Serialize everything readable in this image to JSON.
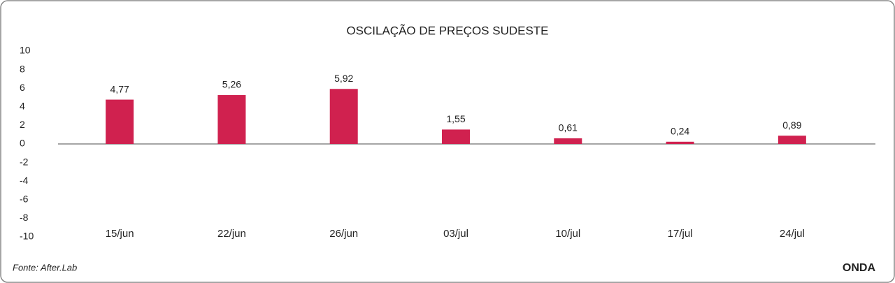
{
  "chart_data": {
    "type": "bar",
    "title": "OSCILAÇÃO DE PREÇOS SUDESTE",
    "categories": [
      "15/jun",
      "22/jun",
      "26/jun",
      "03/jul",
      "10/jul",
      "17/jul",
      "24/jul"
    ],
    "values": [
      4.77,
      5.26,
      5.92,
      1.55,
      0.61,
      0.24,
      0.89
    ],
    "value_labels": [
      "4,77",
      "5,26",
      "5,92",
      "1,55",
      "0,61",
      "0,24",
      "0,89"
    ],
    "color": "#d0214f",
    "ylim": [
      -10,
      10
    ],
    "yticks": [
      10,
      8,
      6,
      4,
      2,
      0,
      -2,
      -4,
      -6,
      -8,
      -10
    ],
    "grid": false
  },
  "footer": {
    "source": "Fonte: After.Lab",
    "brand": "ONDA"
  }
}
